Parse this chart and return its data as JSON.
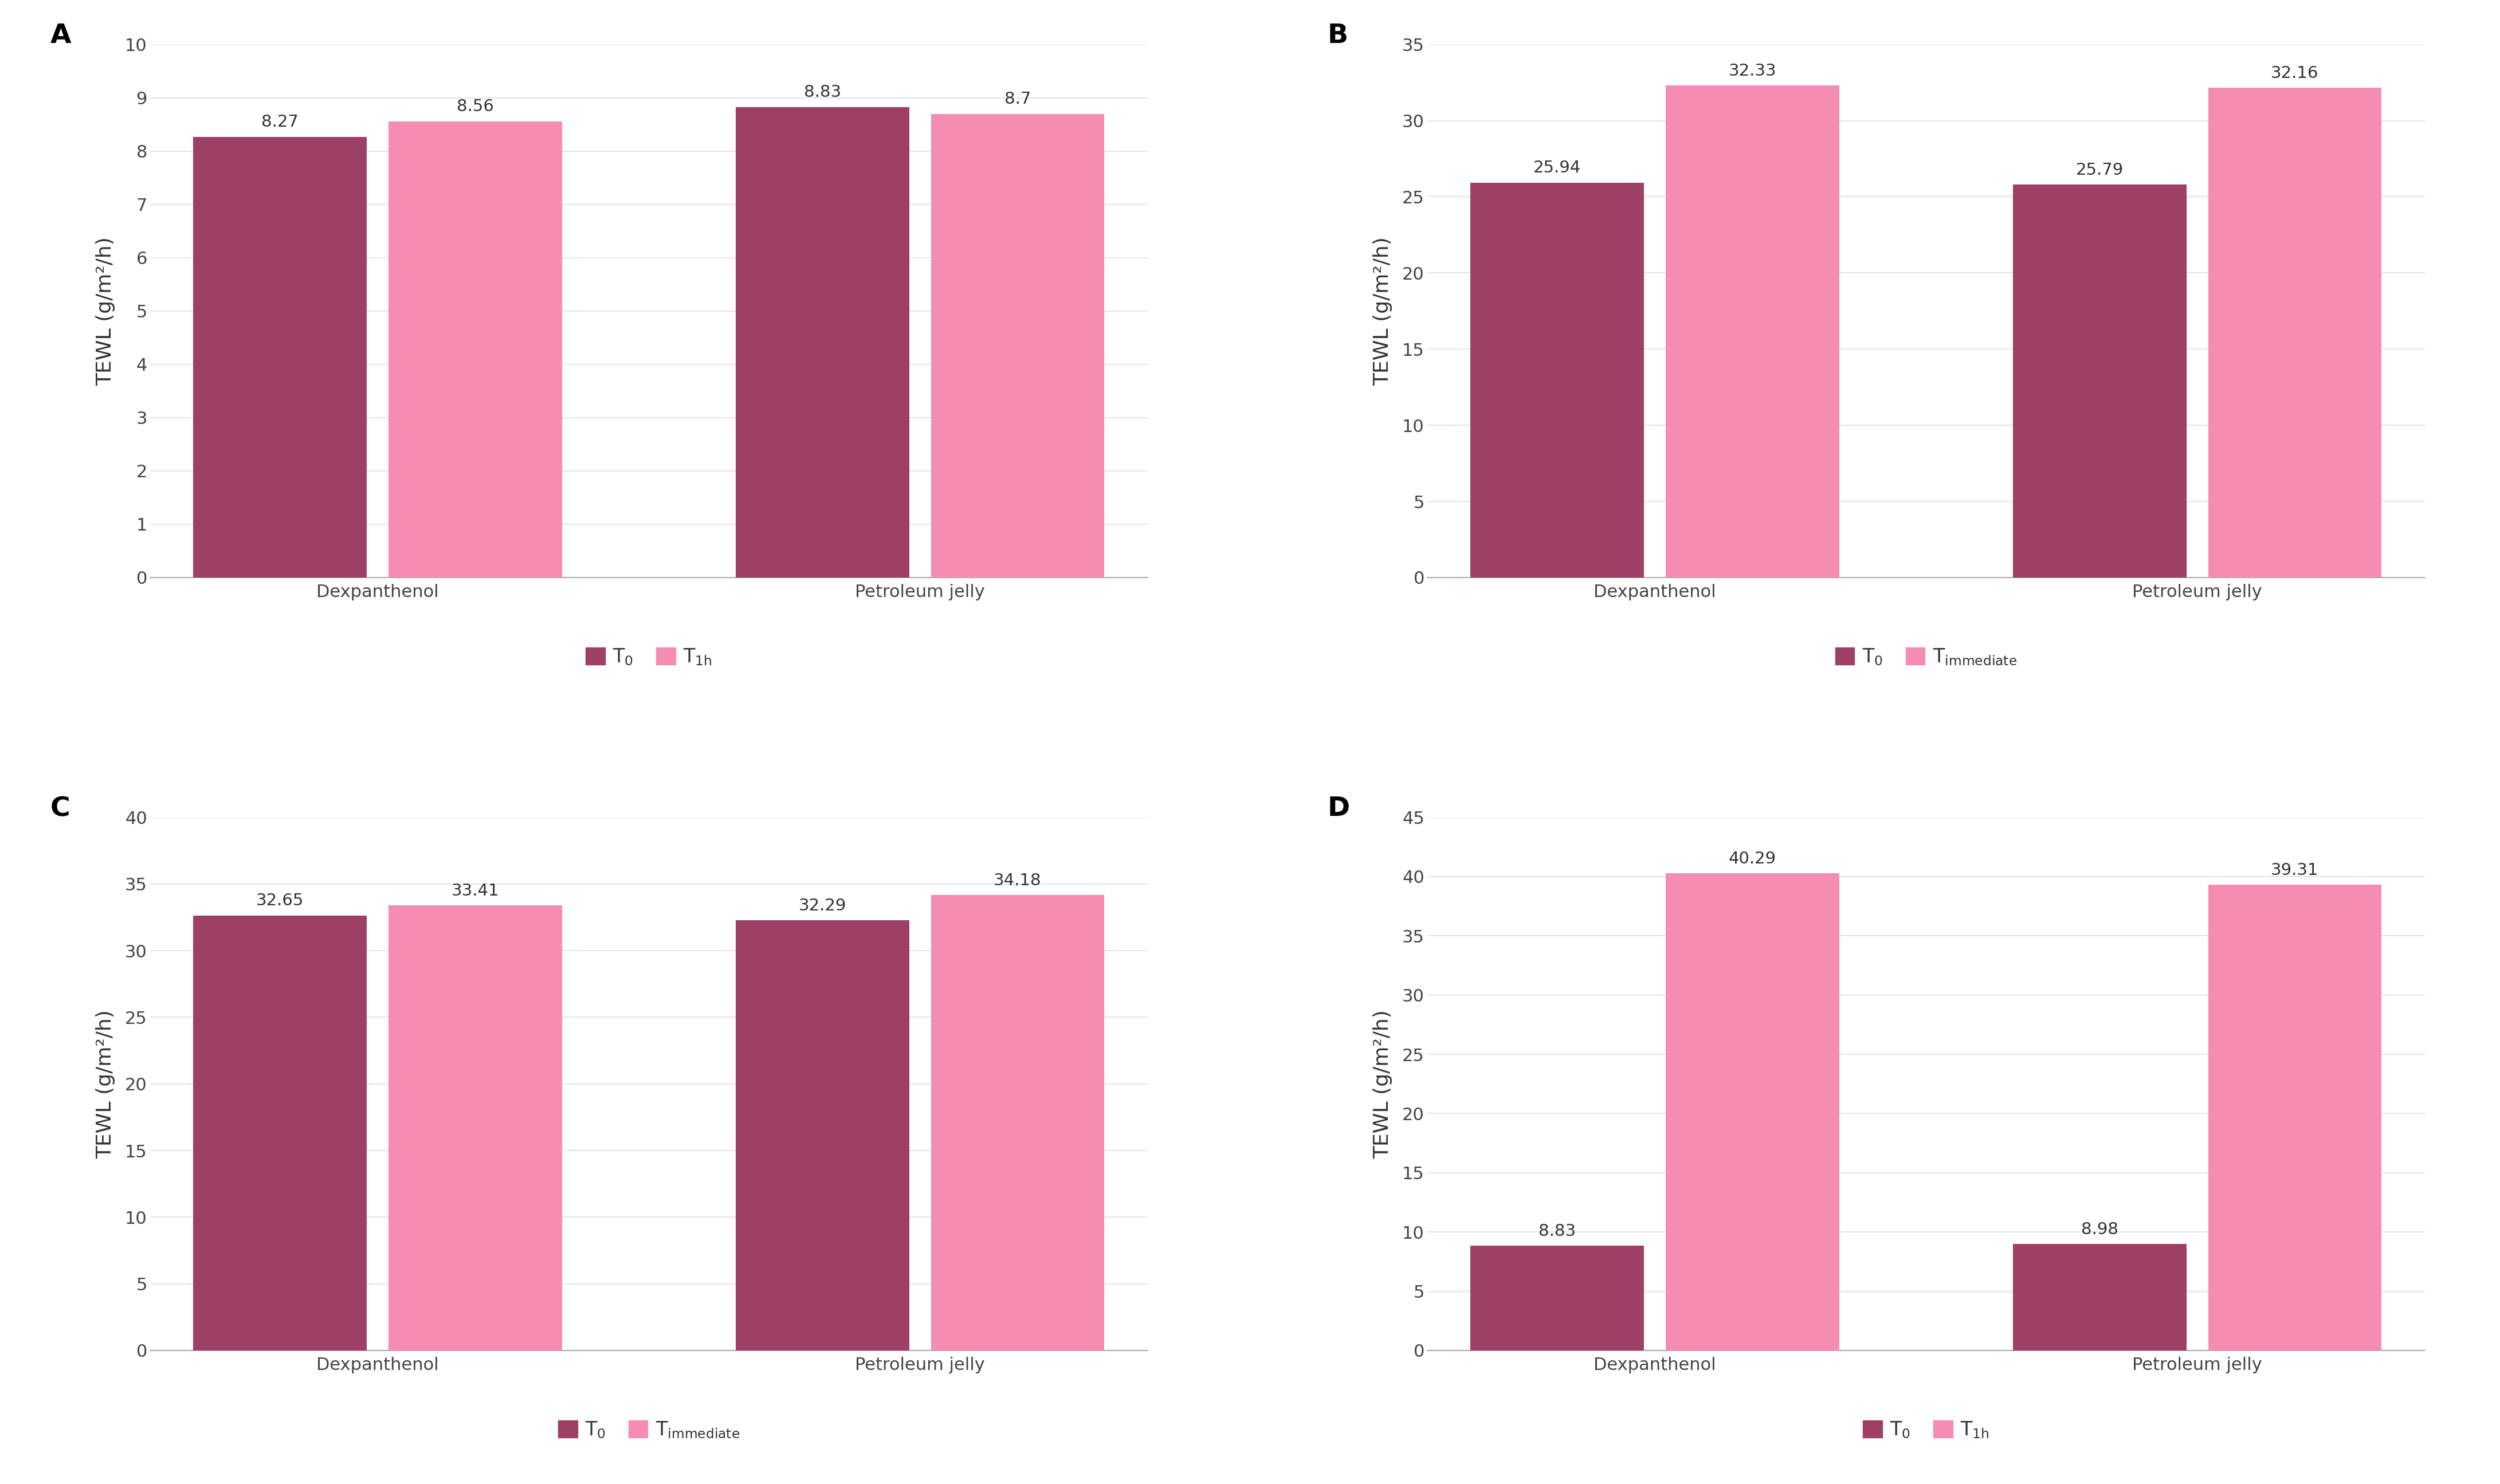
{
  "panels": [
    {
      "label": "A",
      "groups": [
        "Dexpanthenol",
        "Petroleum jelly"
      ],
      "t0_values": [
        8.27,
        8.83
      ],
      "t1_values": [
        8.56,
        8.7
      ],
      "ylim": [
        0,
        10
      ],
      "yticks": [
        0,
        1,
        2,
        3,
        4,
        5,
        6,
        7,
        8,
        9,
        10
      ],
      "legend_t1_subscript": "1h"
    },
    {
      "label": "B",
      "groups": [
        "Dexpanthenol",
        "Petroleum jelly"
      ],
      "t0_values": [
        25.94,
        25.79
      ],
      "t1_values": [
        32.33,
        32.16
      ],
      "ylim": [
        0,
        35
      ],
      "yticks": [
        0,
        5,
        10,
        15,
        20,
        25,
        30,
        35
      ],
      "legend_t1_subscript": "immediate"
    },
    {
      "label": "C",
      "groups": [
        "Dexpanthenol",
        "Petroleum jelly"
      ],
      "t0_values": [
        32.65,
        32.29
      ],
      "t1_values": [
        33.41,
        34.18
      ],
      "ylim": [
        0,
        40
      ],
      "yticks": [
        0,
        5,
        10,
        15,
        20,
        25,
        30,
        35,
        40
      ],
      "legend_t1_subscript": "immediate"
    },
    {
      "label": "D",
      "groups": [
        "Dexpanthenol",
        "Petroleum jelly"
      ],
      "t0_values": [
        8.83,
        8.98
      ],
      "t1_values": [
        40.29,
        39.31
      ],
      "ylim": [
        0,
        45
      ],
      "yticks": [
        0,
        5,
        10,
        15,
        20,
        25,
        30,
        35,
        40,
        45
      ],
      "legend_t1_subscript": "1h"
    }
  ],
  "color_t0": "#9e4065",
  "color_t1": "#f48cb4",
  "ylabel": "TEWL (g/m²/h)",
  "background_color": "#ffffff",
  "grid_color": "#e0e0e0",
  "bar_width": 0.32,
  "group_positions": [
    0.0,
    1.0
  ],
  "xlim": [
    -0.42,
    1.42
  ],
  "font_size_label": 26,
  "font_size_tick": 22,
  "font_size_value": 21,
  "font_size_legend": 24,
  "font_size_panel": 34
}
